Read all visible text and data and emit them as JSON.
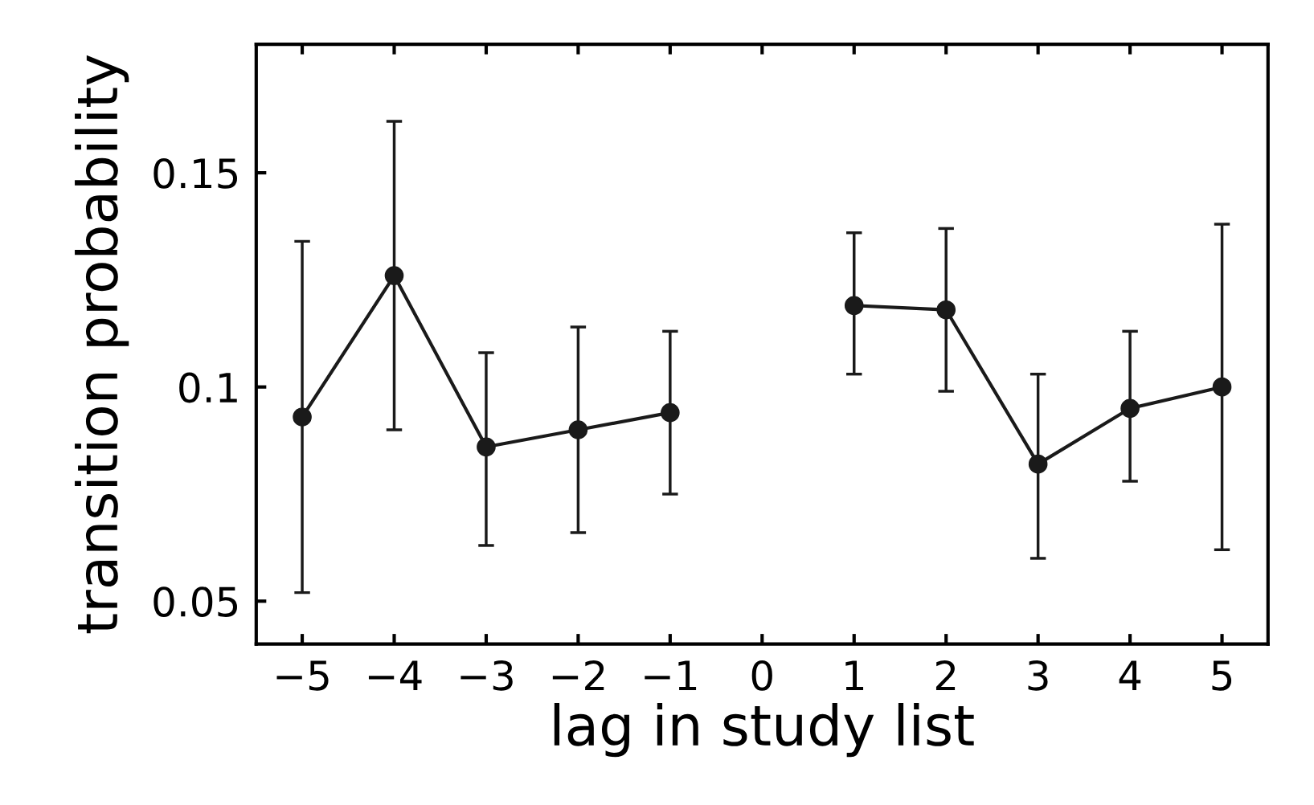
{
  "chart_data": {
    "type": "line",
    "xlabel": "lag in study list",
    "ylabel": "transition probability",
    "x": [
      -5,
      -4,
      -3,
      -2,
      -1,
      0,
      1,
      2,
      3,
      4,
      5
    ],
    "series": [
      {
        "color": "#1a1a1a",
        "values": [
          0.093,
          0.126,
          0.086,
          0.09,
          0.094,
          null,
          0.119,
          0.118,
          0.082,
          0.095,
          0.1
        ],
        "errors": [
          [
            0.052,
            0.134
          ],
          [
            0.09,
            0.162
          ],
          [
            0.063,
            0.108
          ],
          [
            0.066,
            0.114
          ],
          [
            0.075,
            0.113
          ],
          null,
          [
            0.103,
            0.136
          ],
          [
            0.099,
            0.137
          ],
          [
            0.06,
            0.103
          ],
          [
            0.078,
            0.113
          ],
          [
            0.062,
            0.138
          ]
        ]
      }
    ],
    "xlim": [
      -5.5,
      5.5
    ],
    "ylim": [
      0.04,
      0.18
    ],
    "xticks": [
      {
        "value": -5,
        "label": "−5"
      },
      {
        "value": -4,
        "label": "−4"
      },
      {
        "value": -3,
        "label": "−3"
      },
      {
        "value": -2,
        "label": "−2"
      },
      {
        "value": -1,
        "label": "−1"
      },
      0,
      1,
      2,
      3,
      4,
      5
    ],
    "yticks": [
      0.05,
      {
        "value": 0.1,
        "label": "0.1"
      },
      0.15
    ],
    "marker": "circle",
    "line_style": "solid"
  }
}
